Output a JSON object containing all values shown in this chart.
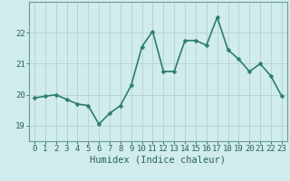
{
  "x": [
    0,
    1,
    2,
    3,
    4,
    5,
    6,
    7,
    8,
    9,
    10,
    11,
    12,
    13,
    14,
    15,
    16,
    17,
    18,
    19,
    20,
    21,
    22,
    23
  ],
  "y": [
    19.9,
    19.95,
    20.0,
    19.85,
    19.7,
    19.65,
    19.05,
    19.4,
    19.65,
    20.3,
    21.55,
    22.05,
    20.75,
    20.75,
    21.75,
    21.75,
    21.6,
    22.5,
    21.45,
    21.15,
    20.75,
    21.0,
    20.6,
    19.95
  ],
  "xlabel": "Humidex (Indice chaleur)",
  "ylim": [
    18.5,
    23.0
  ],
  "yticks": [
    19,
    20,
    21,
    22
  ],
  "xticks": [
    0,
    1,
    2,
    3,
    4,
    5,
    6,
    7,
    8,
    9,
    10,
    11,
    12,
    13,
    14,
    15,
    16,
    17,
    18,
    19,
    20,
    21,
    22,
    23
  ],
  "line_color": "#2d7d6e",
  "marker": "D",
  "marker_size": 2.5,
  "bg_color": "#d0ecec",
  "grid_color": "#b8d4d4",
  "axis_color": "#6a9a9a",
  "tick_label_color": "#2d5f5f",
  "xlabel_color": "#2d5f5f",
  "line_width": 1.2,
  "xlabel_fontsize": 7.5,
  "tick_fontsize": 6.5
}
